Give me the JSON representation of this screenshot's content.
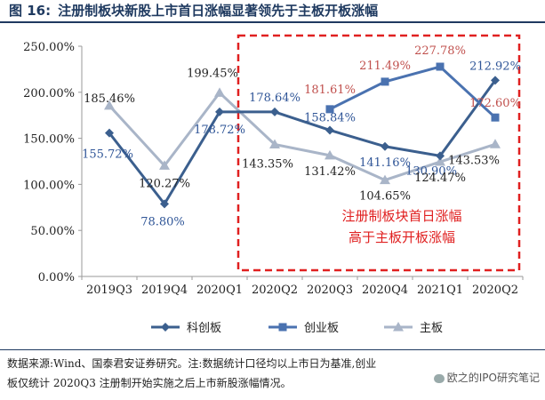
{
  "figure": {
    "label": "图 16:",
    "title": "注册制板块新股上市首日涨幅显著领先于主板开板涨幅"
  },
  "chart_data": {
    "type": "line",
    "categories": [
      "2019Q3",
      "2019Q4",
      "2020Q1",
      "2020Q2",
      "2020Q3",
      "2020Q4",
      "2021Q1",
      "2020Q2"
    ],
    "ylim": [
      0,
      250
    ],
    "yticks": [
      0,
      50,
      100,
      150,
      200,
      250
    ],
    "ytick_labels": [
      "0.00%",
      "50.00%",
      "100.00%",
      "150.00%",
      "200.00%",
      "250.00%"
    ],
    "grid": false,
    "legend_position": "bottom",
    "series": [
      {
        "name": "科创板",
        "color": "#3b5f8e",
        "marker": "diamond",
        "values": [
          155.72,
          78.8,
          178.72,
          178.64,
          158.84,
          141.16,
          130.9,
          212.92
        ],
        "labels": [
          "155.72%",
          "78.80%",
          "178.72%",
          "178.64%",
          "158.84%",
          "141.16%",
          "130.90%",
          "212.92%"
        ]
      },
      {
        "name": "创业板",
        "color": "#4a72b0",
        "marker": "square",
        "values": [
          null,
          null,
          null,
          null,
          181.61,
          211.49,
          227.78,
          172.6
        ],
        "labels": [
          "",
          "",
          "",
          "",
          "181.61%",
          "211.49%",
          "227.78%",
          "172.60%"
        ]
      },
      {
        "name": "主板",
        "color": "#a9b5c8",
        "marker": "triangle",
        "values": [
          185.46,
          120.27,
          199.45,
          143.35,
          131.42,
          104.65,
          124.47,
          143.53
        ],
        "labels": [
          "185.46%",
          "120.27%",
          "199.45%",
          "143.35%",
          "131.42%",
          "104.65%",
          "124.47%",
          "143.53%"
        ]
      }
    ],
    "annotation": {
      "lines": [
        "注册制板块首日涨幅",
        "高于主板开板涨幅"
      ],
      "color": "#e02020"
    }
  },
  "footnote": {
    "line1": "数据来源:Wind、国泰君安证券研究。注:数据统计口径均以上市日为基准,创业",
    "line2": "板仅统计 2020Q3 注册制开始实施之后上市新股涨幅情况。"
  },
  "watermark": {
    "text": "欧之的IPO研究笔记"
  }
}
